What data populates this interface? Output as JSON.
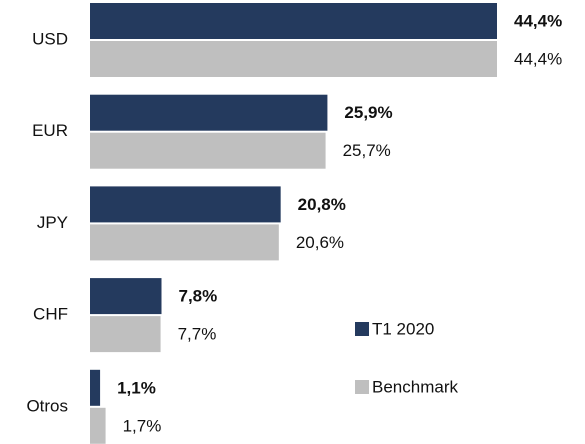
{
  "chart_data": {
    "type": "bar",
    "orientation": "horizontal",
    "categories": [
      "USD",
      "EUR",
      "JPY",
      "CHF",
      "Otros"
    ],
    "series": [
      {
        "name": "T1 2020",
        "color": "#243a5e",
        "values": [
          44.4,
          25.9,
          20.8,
          7.8,
          1.1
        ],
        "value_labels": [
          "44,4%",
          "25,9%",
          "20,8%",
          "7,8%",
          "1,1%"
        ]
      },
      {
        "name": "Benchmark",
        "color": "#bfbfbf",
        "values": [
          44.4,
          25.7,
          20.6,
          7.7,
          1.7
        ],
        "value_labels": [
          "44,4%",
          "25,7%",
          "20,6%",
          "7,7%",
          "1,7%"
        ]
      }
    ],
    "legend": "lower right"
  }
}
